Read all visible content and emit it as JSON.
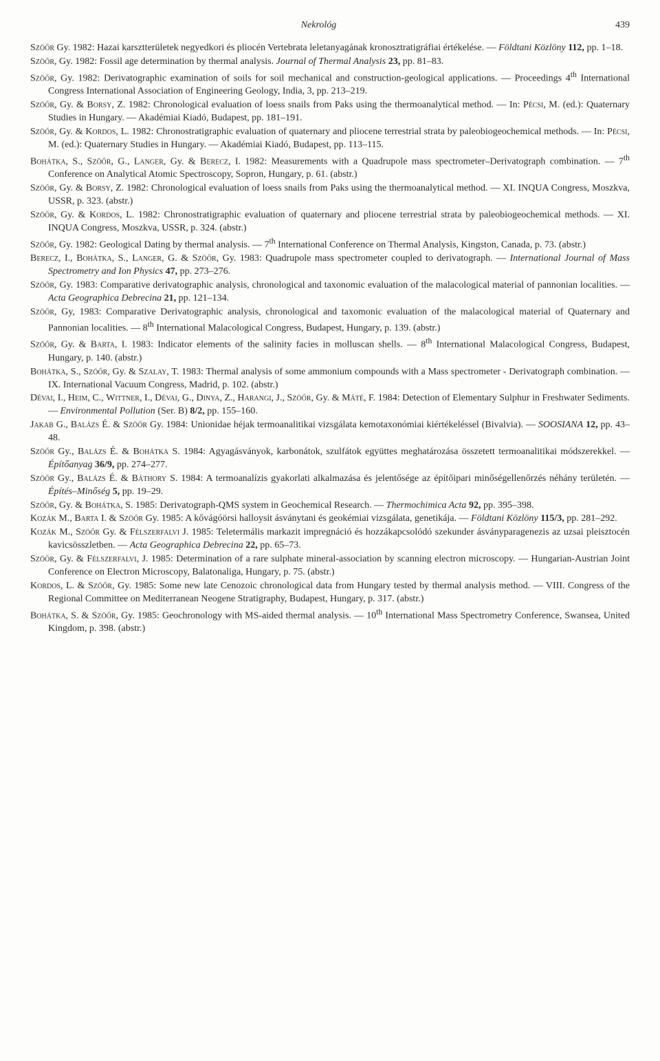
{
  "header": {
    "running_head": "Nekrológ",
    "page_number": "439"
  },
  "entries": [
    "<span class='sc'>Szöőr</span> Gy. 1982: Hazai karsztterületek negyedkori és pliocén Vertebrata leletanyagának kronosztratigráfiai értékelése. — <span class='it'>Földtani Közlöny</span> <b>112,</b> pp. 1–18.",
    "<span class='sc'>Szöőr,</span> Gy. 1982: Fossil age determination by thermal analysis. <span class='it'>Journal of Thermal Analysis</span> <b>23,</b> pp. 81–83.",
    "<span class='sc'>Szöőr,</span> Gy. 1982: Derivatographic examination of soils for soil mechanical and construction-geological applications. — Proceedings 4<sup>th</sup> International Congress International Association of Engineering Geology, India, 3, pp. 213–219.",
    "<span class='sc'>Szöőr,</span> Gy. & <span class='sc'>Borsy,</span> Z. 1982: Chronological evaluation of loess snails from Paks using the thermoanalytical method. — In: <span class='sc'>Pécsi,</span> M. (ed.): Quaternary Studies in Hungary. — Akadémiai Kiadó, Budapest, pp. 181–191.",
    "<span class='sc'>Szöőr,</span> Gy. & <span class='sc'>Kordos,</span> L. 1982: Chronostratigraphic evaluation of quaternary and pliocene terrestrial strata by paleobiogeochemical methods. — In: <span class='sc'>Pécsi,</span> M. (ed.): Quaternary Studies in Hungary. — Akadémiai Kiadó, Budapest, pp. 113–115.",
    "<span class='sc'>Bohátka,</span> S., <span class='sc'>Szöőr,</span> G., <span class='sc'>Langer,</span> Gy. & <span class='sc'>Berecz,</span> I. 1982: Measurements with a Quadrupole mass spectrometer–Derivatograph combination. — 7<sup>th</sup> Conference on Analytical Atomic Spectroscopy, Sopron, Hungary, p. 61. (abstr.)",
    "<span class='sc'>Szöőr,</span> Gy. & <span class='sc'>Borsy,</span> Z. 1982: Chronological evaluation of loess snails from Paks using the thermoanalytical method. — XI. INQUA Congress, Moszkva, USSR, p. 323. (abstr.)",
    "<span class='sc'>Szöőr,</span> Gy. & <span class='sc'>Kordos,</span> L. 1982: Chronostratigraphic evaluation of quaternary and pliocene terrestrial strata by paleobiogeochemical methods. — XI. INQUA Congress, Moszkva, USSR, p. 324. (abstr.)",
    "<span class='sc'>Szöőr,</span> Gy. 1982: Geological Dating by thermal analysis. — 7<sup>th</sup> International Conference on Thermal Analysis, Kingston, Canada, p. 73. (abstr.)",
    "<span class='sc'>Berecz,</span> I., <span class='sc'>Bohátka,</span> S., <span class='sc'>Langer,</span> G. & <span class='sc'>Szöőr,</span> Gy. 1983: Quadrupole mass spectrometer coupled to derivatograph. — <span class='it'>International Journal of Mass Spectrometry and Ion Physics</span> <b>47,</b> pp. 273–276.",
    "<span class='sc'>Szöőr,</span> Gy. 1983: Comparative derivatographic analysis, chronological and taxonomic evaluation of the malacological material of pannonian localities. — <span class='it'>Acta Geographica Debrecina</span> <b>21,</b> pp. 121–134.",
    "<span class='sc'>Szöőr,</span> Gy, 1983: Comparative Derivatographic analysis, chronological and taxomonic evaluation of the malacological material of Quaternary and Pannonian localities. — 8<sup>th</sup> International Malacological Congress, Budapest, Hungary, p. 139. (abstr.)",
    "<span class='sc'>Szöőr,</span> Gy. & <span class='sc'>Barta,</span> I. 1983: Indicator elements of the salinity facies in molluscan shells. — 8<sup>th</sup> International Malacological Congress, Budapest, Hungary, p. 140. (abstr.)",
    "<span class='sc'>Bohátka,</span> S., <span class='sc'>Szöőr,</span> Gy. & <span class='sc'>Szalay,</span> T. 1983: Thermal analysis of some ammonium compounds with a Mass spectrometer - Derivatograph combination. — IX. International Vacuum Congress, Madrid, p. 102. (abstr.)",
    "<span class='sc'>Dévai,</span> I., <span class='sc'>Heim,</span> C., <span class='sc'>Wittner,</span> I., <span class='sc'>Dévai,</span> G., <span class='sc'>Dinya,</span> Z., <span class='sc'>Harangi,</span> J., <span class='sc'>Szöőr,</span> Gy. & <span class='sc'>Máté,</span> F. 1984: Detection of Elementary Sulphur in Freshwater Sediments. — <span class='it'>Environmental Pollution</span> (Ser. B) <b>8/2,</b> pp. 155–160.",
    "<span class='sc'>Jakab</span> G., <span class='sc'>Balázs</span> É. & <span class='sc'>Szöőr</span> Gy. 1984: Unionidae héjak termoanalitikai vizsgálata kemotaxonómiai kiértékeléssel (Bivalvia). — <span class='it'>SOOSIANA</span> <b>12,</b> pp. 43–48.",
    "<span class='sc'>Szöőr</span> Gy., <span class='sc'>Balázs</span> É. & <span class='sc'>Bohátka</span> S. 1984: Agyagásványok, karbonátok, szulfátok együttes meghatározása összetett termoanalitikai módszerekkel. — <span class='it'>Építőanyag</span> <b>36/9,</b> pp. 274–277.",
    "<span class='sc'>Szöőr</span> Gy., <span class='sc'>Balázs</span> É. & <span class='sc'>Báthory</span> S. 1984: A termoanalízis gyakorlati alkalmazása és jelentősége az építőipari minőségellenőrzés néhány területén. — <span class='it'>Építés–Minőség</span> <b>5,</b> pp. 19–29.",
    "<span class='sc'>Szöőr,</span> Gy. & <span class='sc'>Bohátka,</span> S. 1985: Derivatograph-QMS system in Geochemical Research. — <span class='it'>Thermochimica Acta</span> <b>92,</b> pp. 395–398.",
    "<span class='sc'>Kozák</span> M., <span class='sc'>Barta</span> I. & <span class='sc'>Szöőr</span> Gy. 1985: A kővágóörsi halloysit ásványtani és geokémiai vizsgálata, genetikája. — <span class='it'>Földtani Közlöny</span> <b>115/3,</b> pp. 281–292.",
    "<span class='sc'>Kozák</span> M., <span class='sc'>Szöőr</span> Gy. & <span class='sc'>Félszerfalvi</span> J. 1985: Teletermális markazit impregnáció és hozzákapcsolódó szekunder ásványparagenezis az uzsai pleisztocén kavicsösszletben. — <span class='it'>Acta Geographica Debrecina</span> <b>22,</b> pp. 65–73.",
    "<span class='sc'>Szöőr,</span> Gy. & <span class='sc'>Félszerfalvi,</span> J. 1985: Determination of a rare sulphate mineral-association by scanning electron microscopy. — Hungarian-Austrian Joint Conference on Electron Microscopy, Balatonaliga, Hungary, p. 75. (abstr.)",
    "<span class='sc'>Kordos,</span> L. & <span class='sc'>Szöőr,</span> Gy. 1985: Some new late Cenozoic chronological data from Hungary tested by thermal analysis method. — VIII. Congress of the Regional Committee on Mediterranean Neogene Stratigraphy, Budapest, Hungary, p. 317. (abstr.)",
    "<span class='sc'>Bohátka,</span> S. & <span class='sc'>Szöőr,</span> Gy. 1985: Geochronology with MS-aided thermal analysis. — 10<sup>th</sup> International Mass Spectrometry Conference, Swansea, United Kingdom, p. 398. (abstr.)"
  ]
}
